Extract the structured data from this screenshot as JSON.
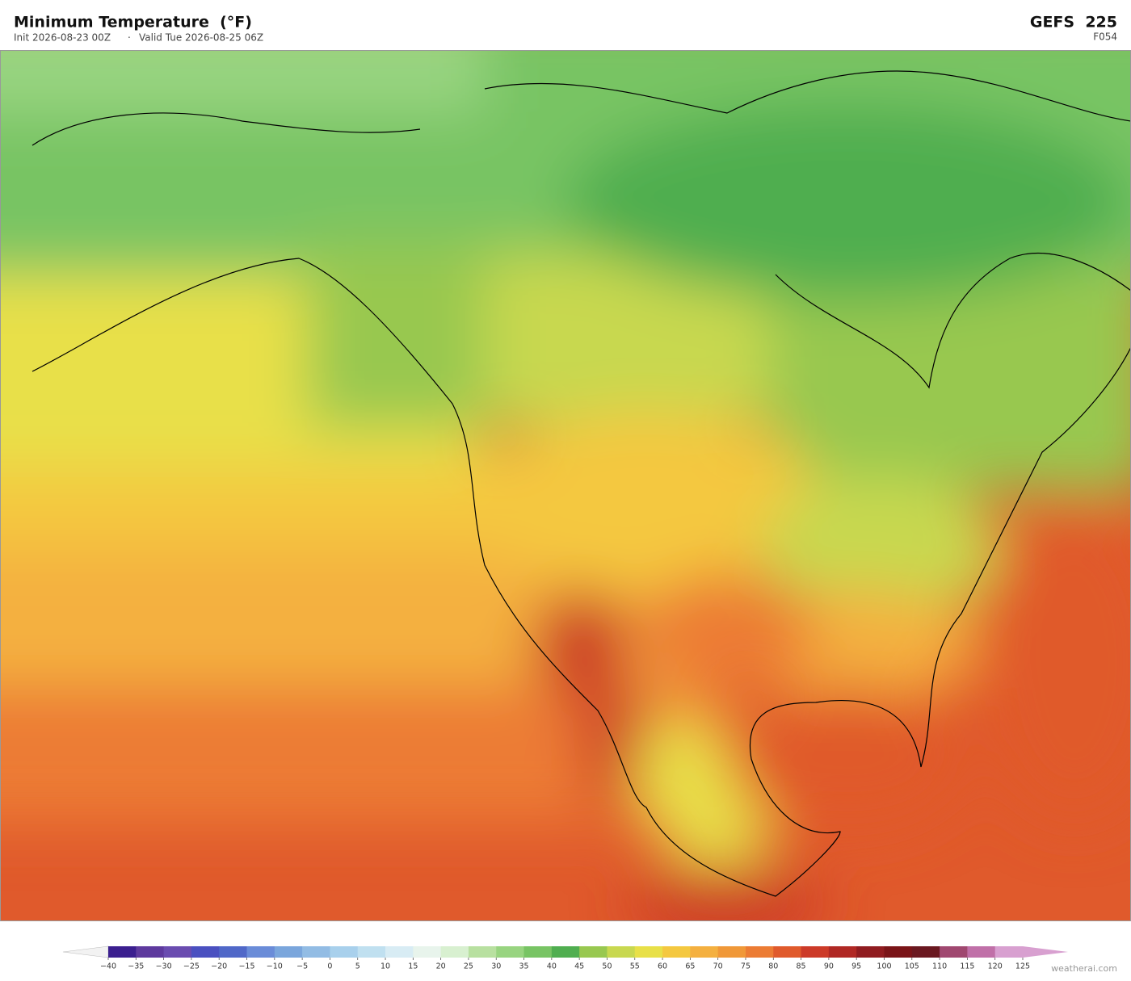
{
  "header": {
    "title": "Minimum Temperature  (°F)",
    "init": "Init 2026-08-23 00Z",
    "separator": "·",
    "valid": "Valid Tue 2026-08-25 06Z",
    "model": "GEFS  225",
    "forecast_hour": "F054"
  },
  "colorbar": {
    "lim": [
      -40,
      125
    ],
    "ticks": [
      {
        "value": -40,
        "label": "−40"
      },
      {
        "value": -35,
        "label": "−35"
      },
      {
        "value": -30,
        "label": "−30"
      },
      {
        "value": -25,
        "label": "−25"
      },
      {
        "value": -20,
        "label": "−20"
      },
      {
        "value": -15,
        "label": "−15"
      },
      {
        "value": -10,
        "label": "−10"
      },
      {
        "value": -5,
        "label": "−5"
      },
      0,
      5,
      10,
      15,
      20,
      25,
      30,
      35,
      40,
      45,
      50,
      55,
      60,
      65,
      70,
      75,
      80,
      85,
      90,
      95,
      100,
      105,
      110,
      115,
      120,
      125
    ],
    "colors": [
      "#3b1f8f",
      "#5e3a9e",
      "#6a4cb0",
      "#4a50c0",
      "#5068c8",
      "#6a8cd8",
      "#7aa6dc",
      "#92bce4",
      "#a8d0ec",
      "#c0e0f0",
      "#d8ecf4",
      "#e8f4ec",
      "#d8f0d0",
      "#b8e0a0",
      "#98d480",
      "#78c464",
      "#50ae50",
      "#98c850",
      "#c8d850",
      "#e8e048",
      "#f4c840",
      "#f4b040",
      "#f09838",
      "#ec7c34",
      "#e05a2c",
      "#cc3a28",
      "#b02824",
      "#901c20",
      "#7a1418",
      "#6a1820",
      "#a04870",
      "#c070a8",
      "#d8a0d0"
    ]
  },
  "credit": "weatherai.com"
}
